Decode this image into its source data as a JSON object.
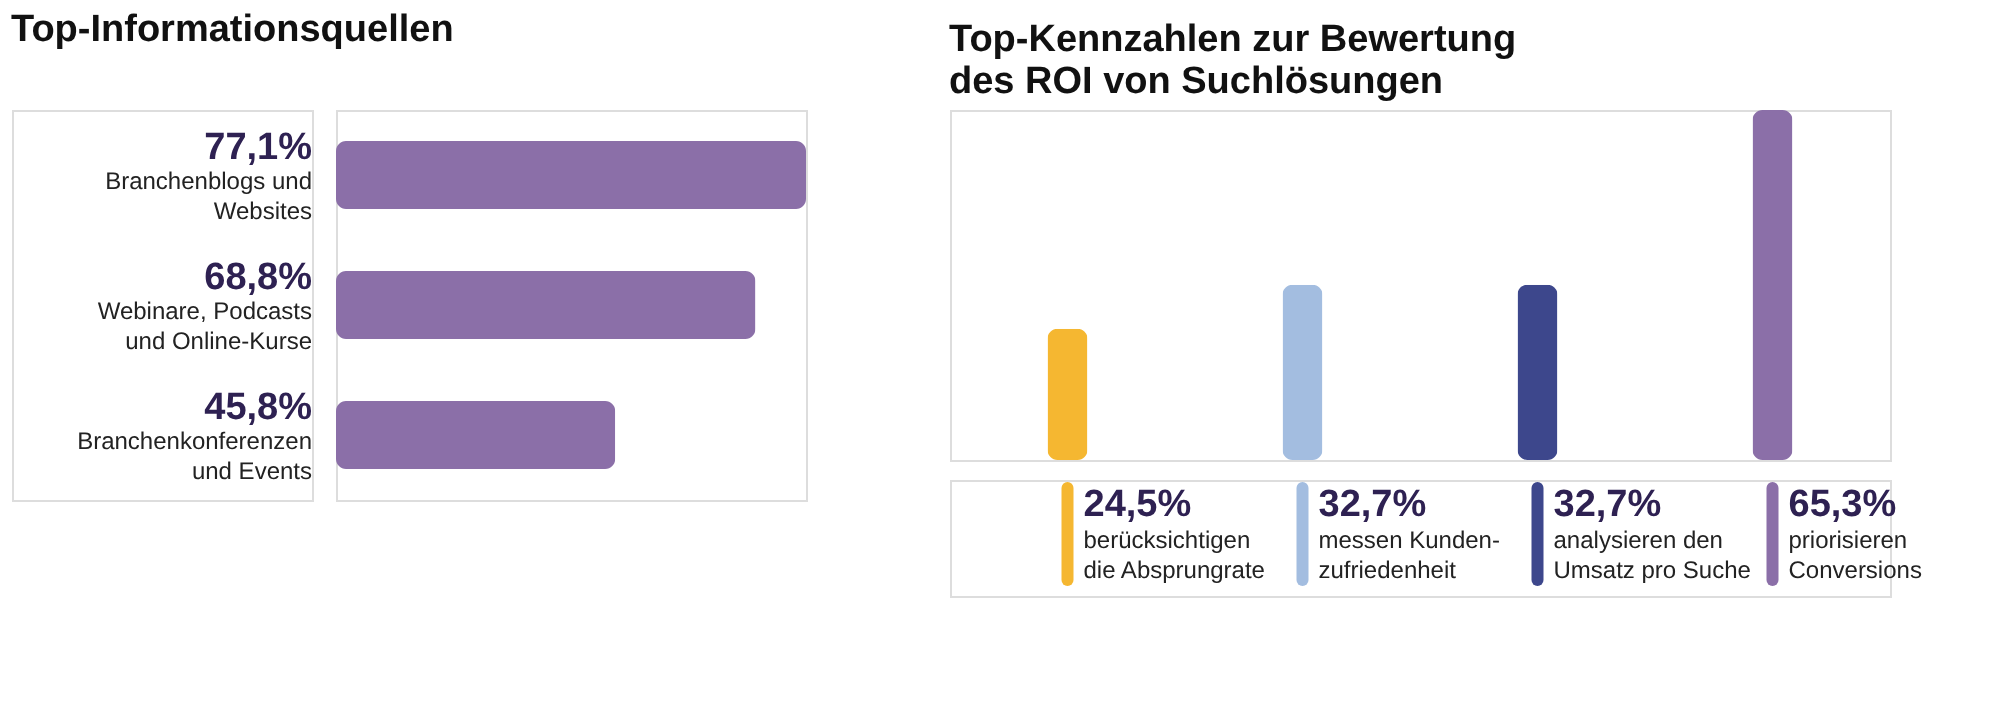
{
  "chart_data": [
    {
      "type": "bar",
      "orientation": "horizontal",
      "title": "Top-Informationsquellen",
      "categories": [
        "Branchenblogs und Websites",
        "Webinare, Podcasts und Online-Kurse",
        "Branchenkonferenzen und Events"
      ],
      "values": [
        77.1,
        68.8,
        45.8
      ],
      "value_labels": [
        "77,1%",
        "68,8%",
        "45,8%"
      ],
      "color": "#8b6fa8"
    },
    {
      "type": "bar",
      "title": "Top-Kennzahlen zur Bewertung des ROI von Suchlösungen",
      "categories": [
        "berücksichtigen die Absprungrate",
        "messen Kunden-zufriedenheit",
        "analysieren den Umsatz pro Suche",
        "priorisieren Conversions"
      ],
      "values": [
        24.5,
        32.7,
        32.7,
        65.3
      ],
      "value_labels": [
        "24,5%",
        "32,7%",
        "32,7%",
        "65,3%"
      ],
      "colors": [
        "#f5b731",
        "#a3bde0",
        "#3d478c",
        "#8b6fa8"
      ]
    }
  ]
}
